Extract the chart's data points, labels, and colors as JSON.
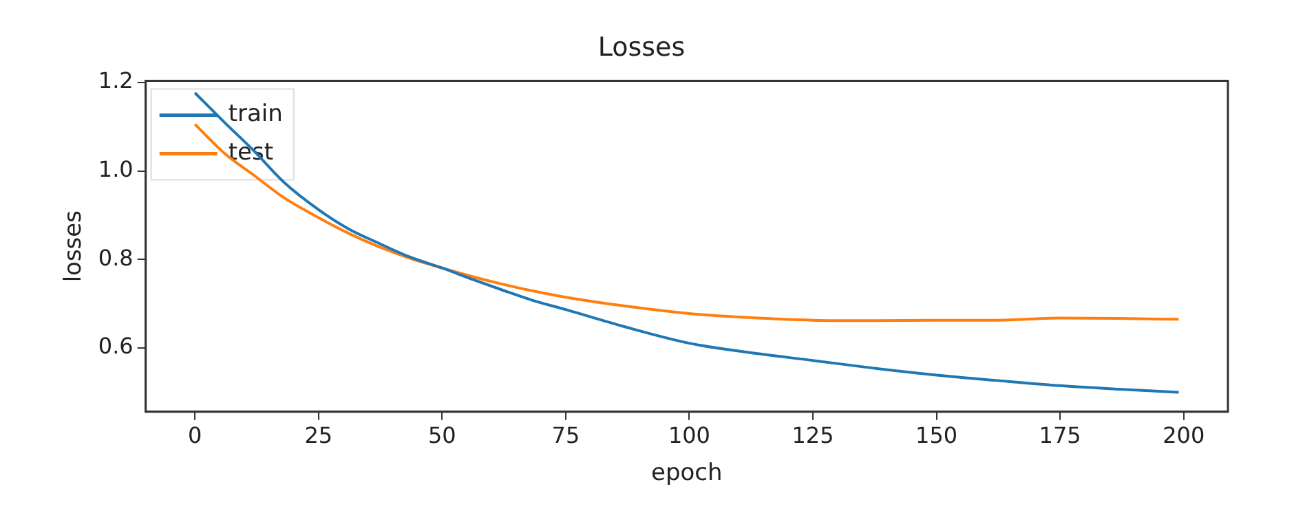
{
  "chart_data": {
    "type": "line",
    "title": "Losses",
    "xlabel": "epoch",
    "ylabel": "losses",
    "x": [
      0,
      6,
      12,
      18,
      25,
      31,
      37,
      43,
      50,
      56,
      62,
      68,
      75,
      87,
      100,
      112,
      125,
      137,
      150,
      162,
      175,
      187,
      199
    ],
    "series": [
      {
        "name": "train",
        "color": "#1f77b4",
        "values": [
          1.177,
          1.11,
          1.045,
          0.975,
          0.913,
          0.87,
          0.838,
          0.808,
          0.781,
          0.756,
          0.732,
          0.709,
          0.687,
          0.648,
          0.611,
          0.59,
          0.572,
          0.555,
          0.539,
          0.527,
          0.515,
          0.507,
          0.5
        ]
      },
      {
        "name": "test",
        "color": "#ff7f0e",
        "values": [
          1.106,
          1.04,
          0.99,
          0.94,
          0.895,
          0.86,
          0.83,
          0.805,
          0.781,
          0.762,
          0.745,
          0.73,
          0.715,
          0.695,
          0.678,
          0.669,
          0.663,
          0.662,
          0.663,
          0.663,
          0.668,
          0.667,
          0.665
        ]
      }
    ],
    "xlim": [
      -9.95,
      208.95
    ],
    "xticks": [
      0,
      25,
      50,
      75,
      100,
      125,
      150,
      175,
      200
    ],
    "ylim": [
      0.456,
      1.204
    ],
    "yticks": [
      {
        "value": 0.6,
        "label": "0.6"
      },
      {
        "value": 0.8,
        "label": "0.8"
      },
      {
        "value": 1.0,
        "label": "1.0"
      },
      {
        "value": 1.2,
        "label": "1.2"
      }
    ],
    "grid": false,
    "legend": "top left",
    "marker": "none",
    "line_style": "solid"
  }
}
